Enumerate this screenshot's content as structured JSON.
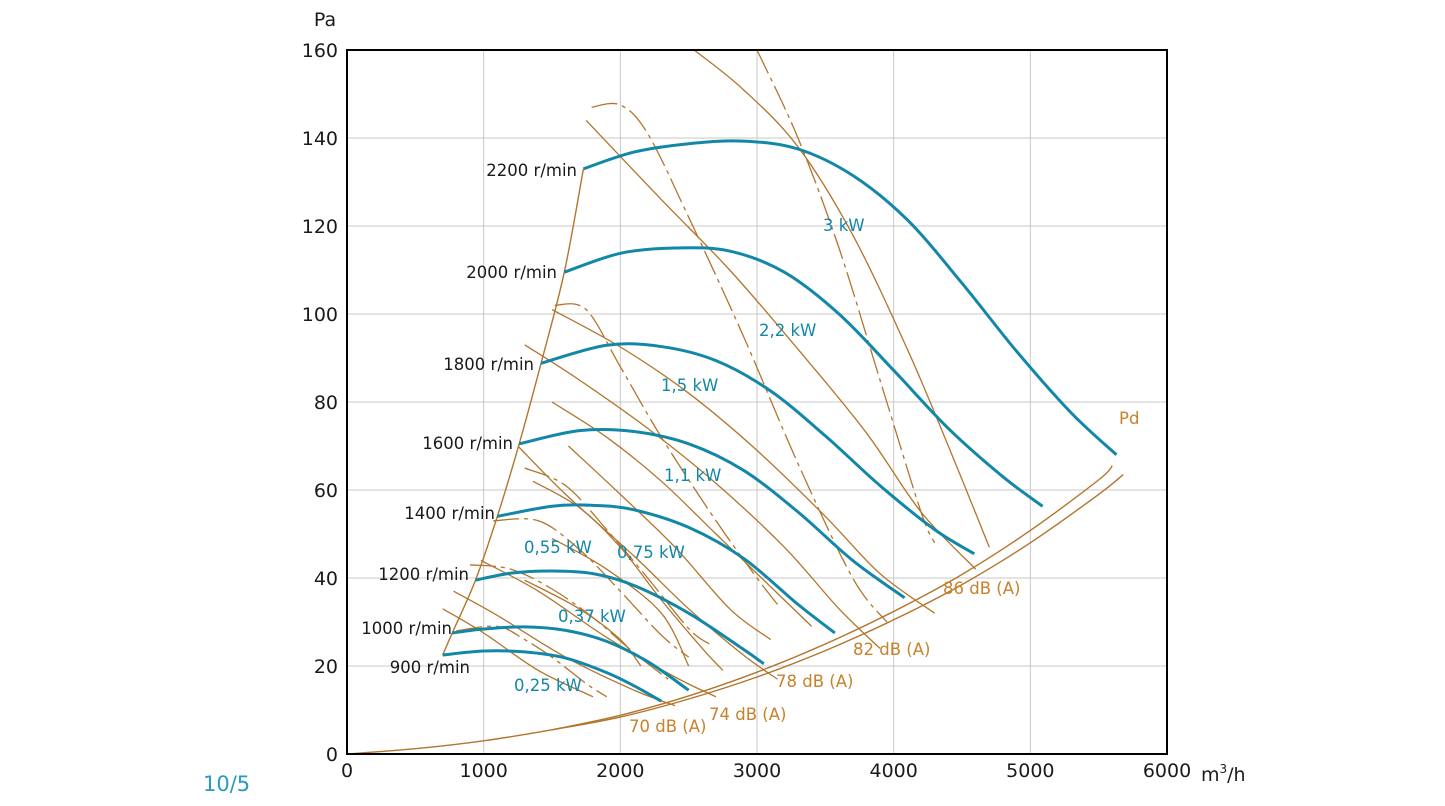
{
  "page_label": "10/5",
  "colors": {
    "speed_curve": "#1387a8",
    "brown": "#b2752c",
    "db_text": "#c8822b",
    "grid": "#c8c8c8",
    "axis": "#000000"
  },
  "chart_data": {
    "type": "line",
    "xlabel": "m³/h",
    "ylabel": "Pa",
    "xlim": [
      0,
      6000
    ],
    "ylim": [
      0,
      160
    ],
    "x_ticks": [
      "0",
      "1000",
      "2000",
      "3000",
      "4000",
      "5000",
      "6000"
    ],
    "y_ticks": [
      "0",
      "20",
      "40",
      "60",
      "80",
      "100",
      "120",
      "140",
      "160"
    ],
    "grid": true,
    "speed_curves": [
      {
        "name": "900 r/min",
        "points": [
          [
            700,
            22.5
          ],
          [
            1000,
            23.4
          ],
          [
            1300,
            23.2
          ],
          [
            1600,
            21.8
          ],
          [
            1900,
            18.5
          ],
          [
            2100,
            15.5
          ],
          [
            2300,
            12
          ]
        ]
      },
      {
        "name": "1000 r/min",
        "points": [
          [
            770,
            27.5
          ],
          [
            1000,
            28.4
          ],
          [
            1300,
            28.9
          ],
          [
            1600,
            28.1
          ],
          [
            1900,
            25.6
          ],
          [
            2200,
            21
          ],
          [
            2500,
            14.5
          ]
        ]
      },
      {
        "name": "1200 r/min",
        "points": [
          [
            940,
            39.5
          ],
          [
            1200,
            41.1
          ],
          [
            1500,
            41.6
          ],
          [
            1800,
            41
          ],
          [
            2100,
            38.3
          ],
          [
            2500,
            32
          ],
          [
            2900,
            23.8
          ],
          [
            3050,
            20.5
          ]
        ]
      },
      {
        "name": "1400 r/min",
        "points": [
          [
            1100,
            54
          ],
          [
            1500,
            56.3
          ],
          [
            1800,
            56.5
          ],
          [
            2100,
            55.5
          ],
          [
            2500,
            51.5
          ],
          [
            2900,
            44.5
          ],
          [
            3300,
            34
          ],
          [
            3570,
            27.5
          ]
        ]
      },
      {
        "name": "1600 r/min",
        "points": [
          [
            1260,
            70.5
          ],
          [
            1700,
            73.5
          ],
          [
            2100,
            73.3
          ],
          [
            2500,
            70.5
          ],
          [
            2900,
            64.5
          ],
          [
            3300,
            55
          ],
          [
            3700,
            44
          ],
          [
            4080,
            35.5
          ]
        ]
      },
      {
        "name": "1800 r/min",
        "points": [
          [
            1420,
            88.8
          ],
          [
            1900,
            92.9
          ],
          [
            2300,
            92.6
          ],
          [
            2700,
            89.4
          ],
          [
            3100,
            82.5
          ],
          [
            3500,
            72.3
          ],
          [
            3900,
            61
          ],
          [
            4300,
            51
          ],
          [
            4590,
            45.5
          ]
        ]
      },
      {
        "name": "2000 r/min",
        "points": [
          [
            1590,
            109.5
          ],
          [
            2000,
            113.8
          ],
          [
            2400,
            115
          ],
          [
            2800,
            114.3
          ],
          [
            3200,
            109.5
          ],
          [
            3600,
            100
          ],
          [
            4000,
            87.2
          ],
          [
            4400,
            74
          ],
          [
            4800,
            63
          ],
          [
            5090,
            56.3
          ]
        ]
      },
      {
        "name": "2200 r/min",
        "points": [
          [
            1730,
            133
          ],
          [
            2100,
            136.8
          ],
          [
            2500,
            138.7
          ],
          [
            2900,
            139.3
          ],
          [
            3300,
            137.5
          ],
          [
            3700,
            131.5
          ],
          [
            4100,
            121.4
          ],
          [
            4500,
            107
          ],
          [
            4900,
            91.5
          ],
          [
            5300,
            77.5
          ],
          [
            5630,
            68
          ]
        ]
      }
    ],
    "speed_labels": [
      "900 r/min",
      "1000 r/min",
      "1200 r/min",
      "1400 r/min",
      "1600 r/min",
      "1800 r/min",
      "2000 r/min",
      "2200 r/min"
    ],
    "power_labels": [
      "0,25 kW",
      "0,37 kW",
      "0,55 kW",
      "0,75 kW",
      "1,1 kW",
      "1,5 kW",
      "2,2 kW",
      "3 kW"
    ],
    "sound_labels": [
      "70 dB (A)",
      "74 dB (A)",
      "78 dB (A)",
      "82 dB (A)",
      "86 dB (A)"
    ],
    "pd_label": "Pd",
    "pd_curve": [
      [
        0,
        0
      ],
      [
        500,
        1.2
      ],
      [
        1000,
        3
      ],
      [
        1500,
        5.5
      ],
      [
        2000,
        8.4
      ],
      [
        2500,
        12.5
      ],
      [
        3000,
        17.5
      ],
      [
        3500,
        23.5
      ],
      [
        4000,
        30.5
      ],
      [
        4500,
        38.5
      ],
      [
        5000,
        48
      ],
      [
        5500,
        59
      ],
      [
        5680,
        63.5
      ]
    ],
    "pd_outer_curve": [
      [
        1500,
        5.5
      ],
      [
        2000,
        8.8
      ],
      [
        2500,
        13.2
      ],
      [
        3000,
        18.6
      ],
      [
        3500,
        25
      ],
      [
        4000,
        32.4
      ],
      [
        4500,
        40.8
      ],
      [
        5000,
        50.8
      ],
      [
        5500,
        62.3
      ],
      [
        5600,
        65.5
      ]
    ],
    "system_line": [
      [
        700,
        22.5
      ],
      [
        770,
        27.5
      ],
      [
        940,
        39.5
      ],
      [
        1100,
        54
      ],
      [
        1260,
        70.5
      ],
      [
        1420,
        88.8
      ],
      [
        1590,
        109.5
      ],
      [
        1730,
        133
      ]
    ],
    "power_lines": [
      [
        [
          700,
          33
        ],
        [
          1000,
          27.5
        ],
        [
          1400,
          19
        ],
        [
          1800,
          13
        ]
      ],
      [
        [
          780,
          37
        ],
        [
          1100,
          31.5
        ],
        [
          1600,
          22
        ],
        [
          2100,
          14.5
        ],
        [
          2400,
          11
        ]
      ],
      [
        [
          980,
          44
        ],
        [
          1400,
          37
        ],
        [
          1900,
          26.5
        ],
        [
          2400,
          17.5
        ],
        [
          2700,
          13
        ]
      ],
      [
        [
          1250,
          70
        ],
        [
          1600,
          59
        ],
        [
          2100,
          45
        ],
        [
          2500,
          33
        ],
        [
          2900,
          22.5
        ],
        [
          3150,
          17
        ]
      ],
      [
        [
          1300,
          93
        ],
        [
          1700,
          85
        ],
        [
          2200,
          74
        ],
        [
          2700,
          61.5
        ],
        [
          3200,
          47
        ],
        [
          3600,
          33
        ],
        [
          3900,
          24
        ]
      ],
      [
        [
          1500,
          101
        ],
        [
          2000,
          92.5
        ],
        [
          2500,
          82
        ],
        [
          3000,
          69
        ],
        [
          3500,
          54
        ],
        [
          3900,
          41
        ],
        [
          4300,
          32
        ]
      ],
      [
        [
          1750,
          144
        ],
        [
          2300,
          126
        ],
        [
          2800,
          110
        ],
        [
          3300,
          92
        ],
        [
          3800,
          73
        ],
        [
          4200,
          55
        ],
        [
          4600,
          42
        ]
      ],
      [
        [
          2540,
          160
        ],
        [
          2900,
          151
        ],
        [
          3300,
          138
        ],
        [
          3700,
          118
        ],
        [
          4100,
          92
        ],
        [
          4400,
          70
        ],
        [
          4700,
          47
        ]
      ]
    ],
    "sound_lines": [
      [
        [
          1300,
          39.5
        ],
        [
          1700,
          33
        ],
        [
          2000,
          26
        ],
        [
          2150,
          20
        ]
      ],
      [
        [
          1500,
          49
        ],
        [
          1900,
          42
        ],
        [
          2300,
          32
        ],
        [
          2500,
          20
        ]
      ],
      [
        [
          1360,
          62
        ],
        [
          1700,
          56
        ],
        [
          2000,
          47
        ],
        [
          2300,
          35
        ],
        [
          2600,
          24
        ],
        [
          2750,
          19
        ]
      ],
      [
        [
          1620,
          70
        ],
        [
          2000,
          59
        ],
        [
          2400,
          47
        ],
        [
          2800,
          33
        ],
        [
          3100,
          26
        ]
      ],
      [
        [
          1500,
          80
        ],
        [
          1900,
          72
        ],
        [
          2300,
          62
        ],
        [
          2700,
          50
        ],
        [
          3100,
          38
        ],
        [
          3400,
          29
        ]
      ]
    ],
    "dash_lines": [
      [
        [
          800,
          28
        ],
        [
          1100,
          29
        ],
        [
          1300,
          26
        ],
        [
          1500,
          22
        ],
        [
          1750,
          16
        ],
        [
          1900,
          13
        ]
      ],
      [
        [
          900,
          43
        ],
        [
          1200,
          42
        ],
        [
          1500,
          37.5
        ],
        [
          1800,
          31
        ],
        [
          2100,
          23
        ],
        [
          2350,
          17
        ]
      ],
      [
        [
          1070,
          53
        ],
        [
          1400,
          53
        ],
        [
          1700,
          46.5
        ],
        [
          2000,
          37
        ],
        [
          2300,
          27
        ],
        [
          2500,
          22
        ]
      ],
      [
        [
          1300,
          65
        ],
        [
          1600,
          61
        ],
        [
          1900,
          51
        ],
        [
          2200,
          40
        ],
        [
          2500,
          28.5
        ],
        [
          2650,
          25
        ]
      ],
      [
        [
          1520,
          102
        ],
        [
          1750,
          101
        ],
        [
          2000,
          88
        ],
        [
          2300,
          72
        ],
        [
          2700,
          53
        ],
        [
          3000,
          40
        ],
        [
          3150,
          34
        ]
      ],
      [
        [
          1790,
          147
        ],
        [
          2000,
          147.5
        ],
        [
          2200,
          141
        ],
        [
          2500,
          122
        ],
        [
          2900,
          95
        ],
        [
          3300,
          66
        ],
        [
          3700,
          40
        ],
        [
          3950,
          30
        ]
      ],
      [
        [
          3000,
          160
        ],
        [
          3300,
          140
        ],
        [
          3600,
          115
        ],
        [
          3900,
          85
        ],
        [
          4200,
          55
        ],
        [
          4300,
          48
        ]
      ]
    ]
  }
}
